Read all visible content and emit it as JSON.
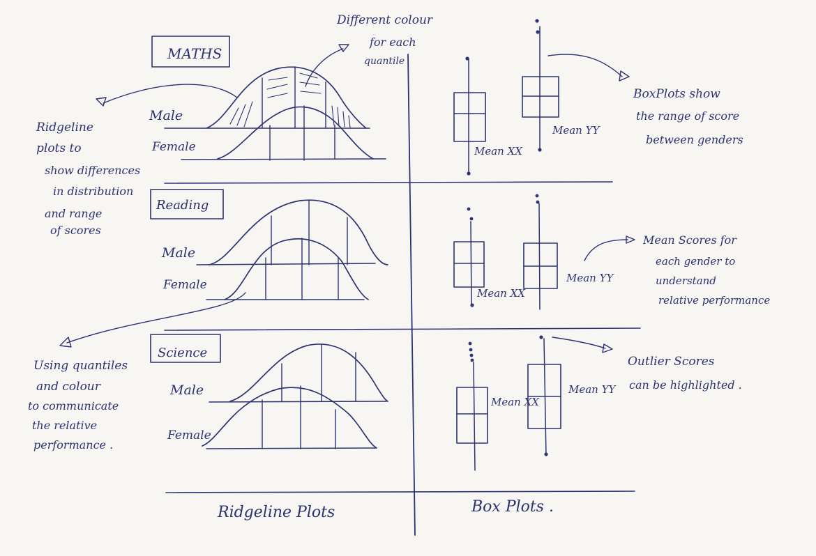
{
  "sketch": {
    "ink_color": "#2d3272",
    "paper_color": "#f7f6f3",
    "column_labels": {
      "ridgeline": "Ridgeline Plots",
      "boxplot": "Box Plots ."
    },
    "subjects": [
      {
        "name": "MATHS",
        "male": "Male",
        "female": "Female",
        "male_mean": "Mean XX",
        "female_mean": "Mean YY"
      },
      {
        "name": "Reading",
        "male": "Male",
        "female": "Female",
        "male_mean": "Mean XX",
        "female_mean": "Mean YY"
      },
      {
        "name": "Science",
        "male": "Male",
        "female": "Female",
        "male_mean": "Mean XX",
        "female_mean": "Mean YY"
      }
    ],
    "annotations": {
      "colour_note": [
        "Different colour",
        "for each",
        "quantile"
      ],
      "ridgeline_note": [
        "Ridgeline",
        "plots to",
        "show differences",
        "in distribution",
        "and range",
        "of scores"
      ],
      "quantile_note": [
        "Using quantiles",
        "and colour",
        "to communicate",
        "the relative",
        "performance ."
      ],
      "boxplot_note": [
        "BoxPlots show",
        "the range of score",
        "between genders"
      ],
      "mean_note": [
        "Mean Scores for",
        "each gender to",
        "understand",
        "relative performance"
      ],
      "outlier_note": [
        "Outlier Scores",
        "can be highlighted ."
      ]
    }
  }
}
